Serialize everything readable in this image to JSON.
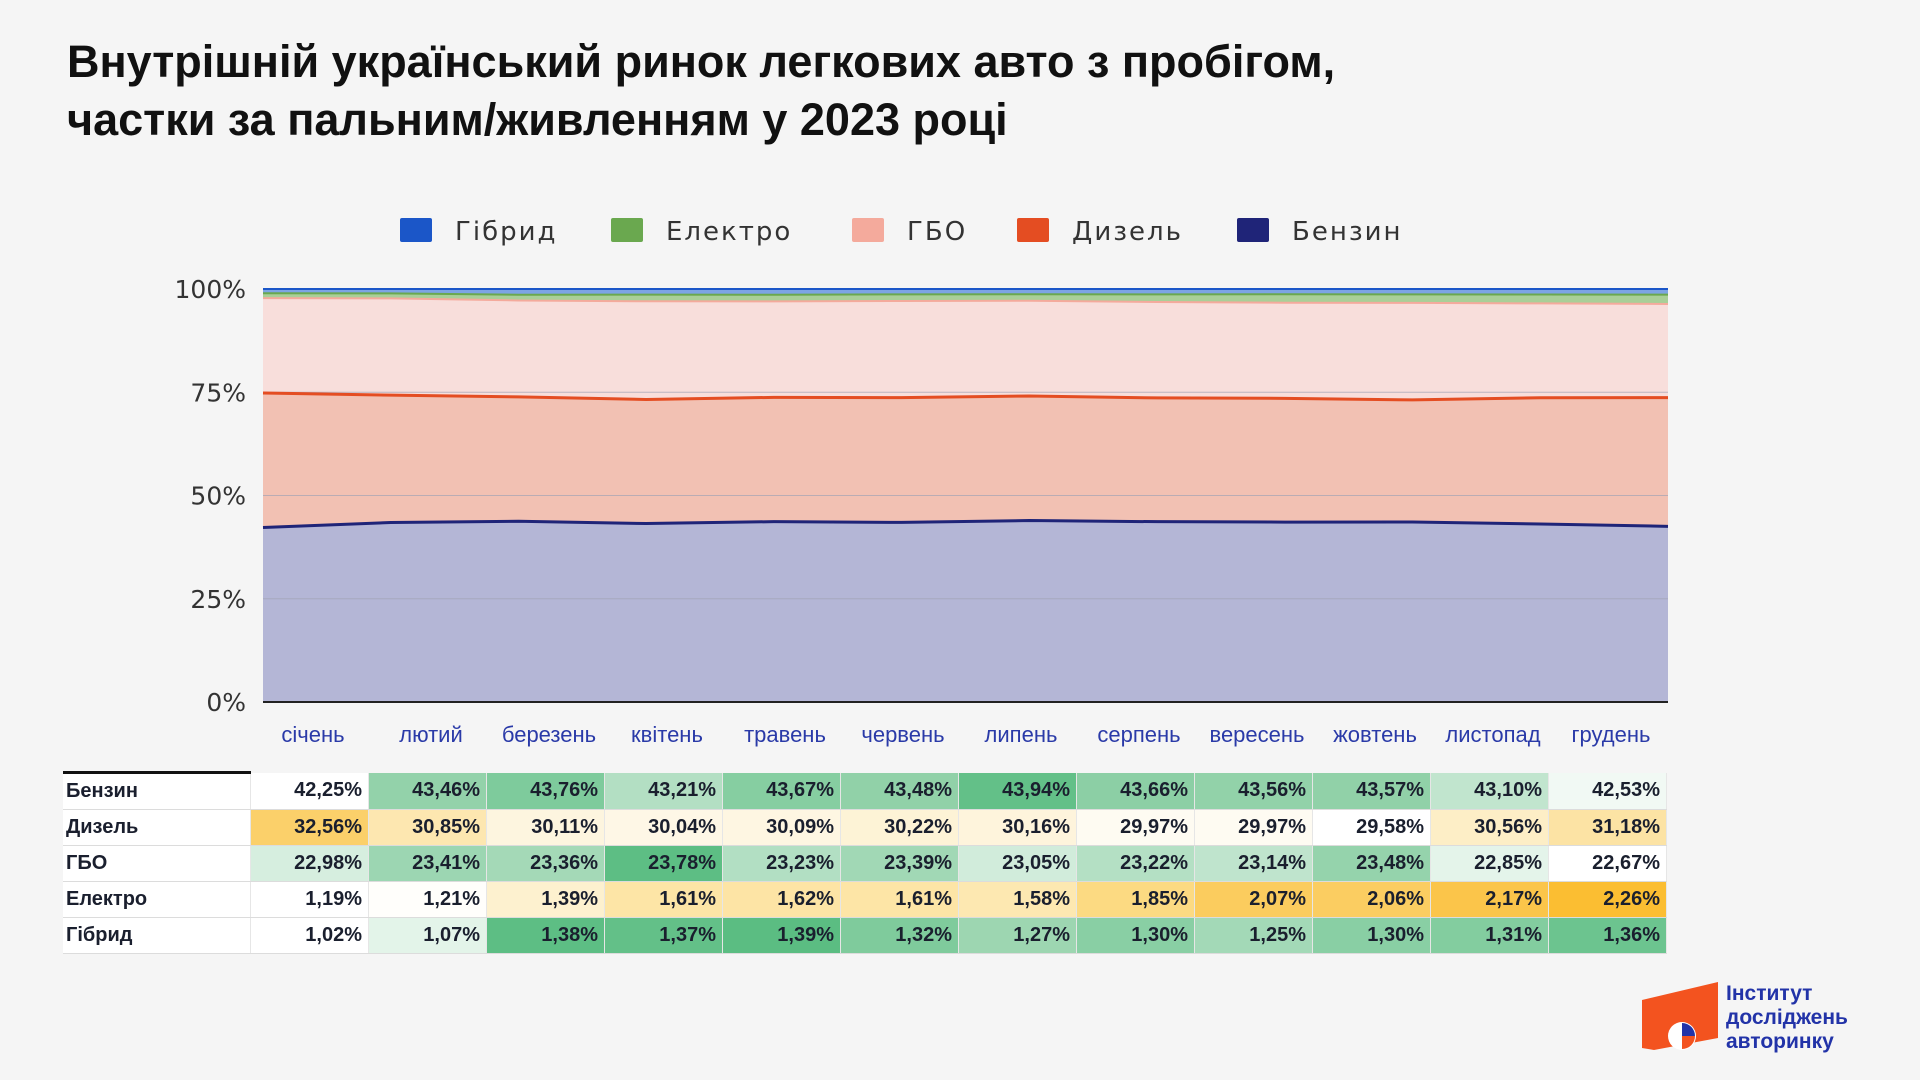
{
  "title_line1": "Внутрішній український ринок легкових авто з пробігом,",
  "title_line2": "частки за пальним/живленням у 2023 році",
  "logo": {
    "line1": "Інститут",
    "line2": "досліджень",
    "line3": "авторинку"
  },
  "chart_data": {
    "type": "area",
    "stacked": true,
    "percent": true,
    "categories": [
      "січень",
      "лютий",
      "березень",
      "квітень",
      "травень",
      "червень",
      "липень",
      "серпень",
      "вересень",
      "жовтень",
      "листопад",
      "грудень"
    ],
    "yticks": [
      "0%",
      "25%",
      "50%",
      "75%",
      "100%"
    ],
    "ylim": [
      0,
      100
    ],
    "legend_position": "top",
    "legend": [
      "Гібрид",
      "Електро",
      "ГБО",
      "Дизель",
      "Бензин"
    ],
    "series": [
      {
        "name": "Бензин",
        "color": "#1f2478",
        "fill": "#b4b6d6",
        "values": [
          42.25,
          43.46,
          43.76,
          43.21,
          43.67,
          43.48,
          43.94,
          43.66,
          43.56,
          43.57,
          43.1,
          42.53
        ],
        "labels": [
          "42,25%",
          "43,46%",
          "43,76%",
          "43,21%",
          "43,67%",
          "43,48%",
          "43,94%",
          "43,66%",
          "43,56%",
          "43,57%",
          "43,10%",
          "42,53%"
        ]
      },
      {
        "name": "Дизель",
        "color": "#e44d22",
        "fill": "#f2c1b3",
        "values": [
          32.56,
          30.85,
          30.11,
          30.04,
          30.09,
          30.22,
          30.16,
          29.97,
          29.97,
          29.58,
          30.56,
          31.18
        ],
        "labels": [
          "32,56%",
          "30,85%",
          "30,11%",
          "30,04%",
          "30,09%",
          "30,22%",
          "30,16%",
          "29,97%",
          "29,97%",
          "29,58%",
          "30,56%",
          "31,18%"
        ]
      },
      {
        "name": "ГБО",
        "color": "#f4aa9c",
        "fill": "#f8dedb",
        "values": [
          22.98,
          23.41,
          23.36,
          23.78,
          23.23,
          23.39,
          23.05,
          23.22,
          23.14,
          23.48,
          22.85,
          22.67
        ],
        "labels": [
          "22,98%",
          "23,41%",
          "23,36%",
          "23,78%",
          "23,23%",
          "23,39%",
          "23,05%",
          "23,22%",
          "23,14%",
          "23,48%",
          "22,85%",
          "22,67%"
        ]
      },
      {
        "name": "Електро",
        "color": "#6aa84f",
        "fill": "#a9cf98",
        "values": [
          1.19,
          1.21,
          1.39,
          1.61,
          1.62,
          1.61,
          1.58,
          1.85,
          2.07,
          2.06,
          2.17,
          2.26
        ],
        "labels": [
          "1,19%",
          "1,21%",
          "1,39%",
          "1,61%",
          "1,62%",
          "1,61%",
          "1,58%",
          "1,85%",
          "2,07%",
          "2,06%",
          "2,17%",
          "2,26%"
        ]
      },
      {
        "name": "Гібрид",
        "color": "#1b56c8",
        "fill": "#7da4e4",
        "values": [
          1.02,
          1.07,
          1.38,
          1.37,
          1.39,
          1.32,
          1.27,
          1.3,
          1.25,
          1.3,
          1.31,
          1.36
        ],
        "labels": [
          "1,02%",
          "1,07%",
          "1,38%",
          "1,37%",
          "1,39%",
          "1,32%",
          "1,27%",
          "1,30%",
          "1,25%",
          "1,30%",
          "1,31%",
          "1,36%"
        ]
      }
    ],
    "table_rows": [
      "Бензин",
      "Дизель",
      "ГБО",
      "Електро",
      "Гібрид"
    ],
    "table_colors": {
      "Бензин": [
        "#ffffff",
        "#93d2aa",
        "#7ecb9c",
        "#b3dfc3",
        "#86cea1",
        "#91d1a8",
        "#63c088",
        "#8ccfa5",
        "#92d2a9",
        "#91d1a8",
        "#c1e5ce",
        "#f1f9f4"
      ],
      "Дизель": [
        "#fbd06a",
        "#fde7b0",
        "#fdf5df",
        "#fef7e6",
        "#fef6e2",
        "#fdf3d6",
        "#fef4dc",
        "#fefbf2",
        "#fefbf2",
        "#ffffff",
        "#fdeec6",
        "#fce3a4"
      ],
      "ГБО": [
        "#d6eedf",
        "#9cd6b2",
        "#a4d9b7",
        "#5dbe84",
        "#b2dfc3",
        "#a1d8b5",
        "#d1ecdb",
        "#b4e0c4",
        "#bfe4cd",
        "#95d3ac",
        "#e4f4ea",
        "#ffffff"
      ],
      "Електро": [
        "#ffffff",
        "#fffefb",
        "#fdf1cf",
        "#fde5a6",
        "#fde4a5",
        "#fde5a6",
        "#fde8b1",
        "#fcda82",
        "#fbcc5e",
        "#fbcd61",
        "#fbc54a",
        "#fbbe32"
      ],
      "Гібрид": [
        "#ffffff",
        "#e3f4e9",
        "#5dbe84",
        "#63c088",
        "#5bbd82",
        "#7fcb9c",
        "#9dd6b1",
        "#89cfa4",
        "#a3d9b7",
        "#89cfa4",
        "#83cd9f",
        "#6cc48f"
      ]
    }
  }
}
